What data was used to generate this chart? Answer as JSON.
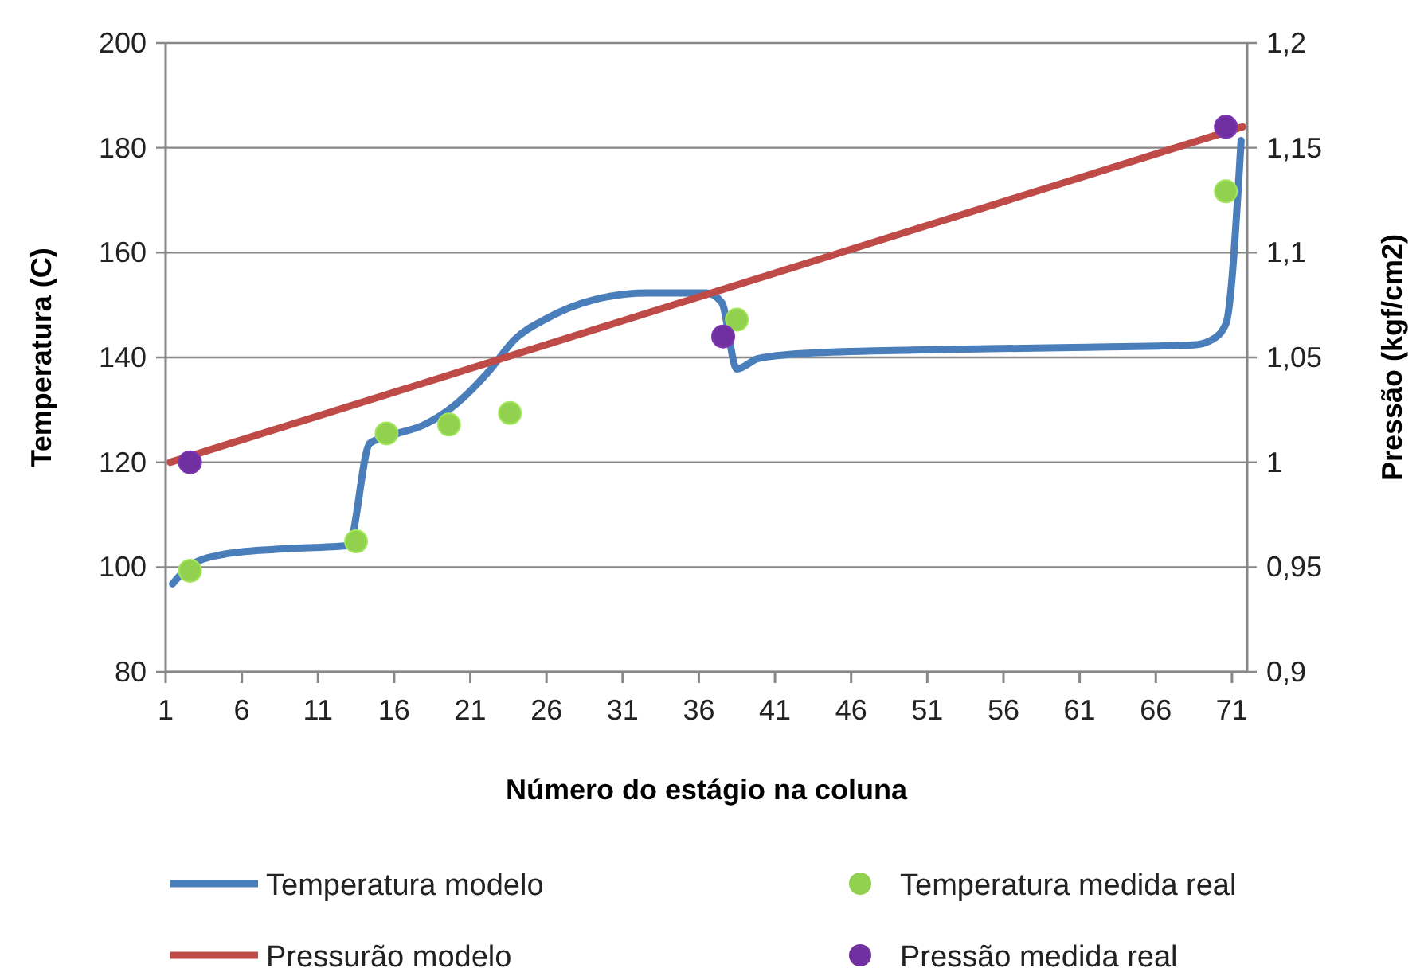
{
  "chart_data": {
    "type": "line",
    "xlabel": "Número do estágio na coluna",
    "ylabel": "Temperatura (C)",
    "y2label": "Pressão (kgf/cm2)",
    "xlim": [
      1,
      72
    ],
    "xticks": [
      1,
      6,
      11,
      16,
      21,
      26,
      31,
      36,
      41,
      46,
      51,
      56,
      61,
      66,
      71
    ],
    "ylim": [
      80,
      200
    ],
    "yticks": [
      80,
      100,
      120,
      140,
      160,
      180,
      200
    ],
    "y2lim": [
      0.9,
      1.2
    ],
    "y2ticks": [
      {
        "value": 0.9,
        "label": "0,9"
      },
      {
        "value": 0.95,
        "label": "0,95"
      },
      {
        "value": 1,
        "label": "1"
      },
      {
        "value": 1.05,
        "label": "1,05"
      },
      {
        "value": 1.1,
        "label": "1,1"
      },
      {
        "value": 1.15,
        "label": "1,15"
      },
      {
        "value": 1.2,
        "label": "1,2"
      }
    ],
    "grid": "y",
    "legend": "bottom",
    "marker": "none",
    "line_style": "solid",
    "series": [
      {
        "name": "Temperatura modelo",
        "color": "#4a7ebb",
        "x": [
          1.45,
          2.67,
          4.76,
          8.24,
          13.0,
          14.4,
          15.9,
          18.0,
          20.1,
          22.2,
          23.9,
          26.0,
          29.1,
          32.6,
          36.5,
          37.5,
          38.5,
          39.9,
          43.1,
          50.0,
          60.5,
          68.5,
          69.7,
          70.6,
          71.6
        ],
        "values": [
          96.8,
          100.4,
          102.4,
          103.4,
          104.1,
          123.6,
          125.2,
          127.2,
          131.2,
          137.3,
          143.4,
          147.4,
          151.0,
          152.3,
          152.3,
          150.5,
          137.8,
          139.8,
          140.8,
          141.4,
          141.9,
          142.4,
          143.4,
          146.4,
          181.4
        ]
      },
      {
        "name": "Temperatura medida real",
        "type": "scatter",
        "marker": "circle",
        "color": "#92d050",
        "x": [
          2.6,
          13.5,
          15.5,
          19.6,
          23.6,
          38.5,
          70.6
        ],
        "values": [
          99.3,
          104.9,
          125.5,
          127.2,
          129.4,
          147.2,
          171.7
        ]
      },
      {
        "name": "Pressurão modelo",
        "axis": "y2",
        "color": "#be4b48",
        "x": [
          1.3,
          71.7
        ],
        "values": [
          1.0,
          1.16
        ]
      },
      {
        "name": "Pressão medida real",
        "type": "scatter",
        "marker": "circle",
        "axis": "y2",
        "color": "#7030a0",
        "x": [
          2.6,
          37.6,
          70.6
        ],
        "values": [
          1.0,
          1.06,
          1.16
        ]
      }
    ]
  }
}
